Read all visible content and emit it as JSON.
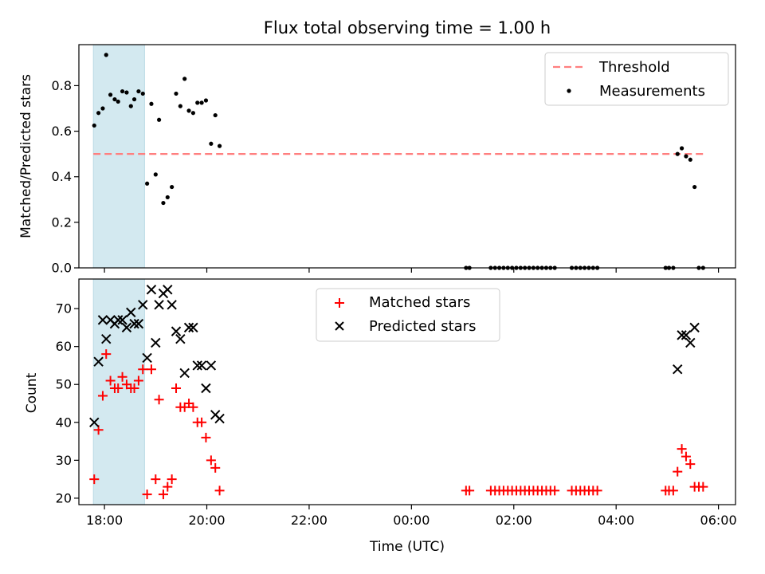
{
  "chart_data": {
    "type": "scatter",
    "title": "Flux total observing time = 1.00 h",
    "x_start": "2024-01-01T17:30",
    "x_end": "2024-01-02T06:20",
    "x_ticks": [
      {
        "time": "2024-01-01T18:00",
        "label": "18:00"
      },
      {
        "time": "2024-01-01T20:00",
        "label": "20:00"
      },
      {
        "time": "2024-01-01T22:00",
        "label": "22:00"
      },
      {
        "time": "2024-01-02T00:00",
        "label": "00:00"
      },
      {
        "time": "2024-01-02T02:00",
        "label": "02:00"
      },
      {
        "time": "2024-01-02T04:00",
        "label": "04:00"
      },
      {
        "time": "2024-01-02T06:00",
        "label": "06:00"
      }
    ],
    "xlabel": "Time (UTC)",
    "shaded_interval": [
      "2024-01-01T17:47",
      "2024-01-01T18:47"
    ],
    "shaded_color": "#d3e9f0",
    "panels": [
      {
        "id": "ratio",
        "ylabel": "Matched/Predicted stars",
        "ylim": [
          0,
          0.98
        ],
        "yticks": [
          {
            "value": 0.0,
            "label": "0.0"
          },
          {
            "value": 0.2,
            "label": "0.2"
          },
          {
            "value": 0.4,
            "label": "0.4"
          },
          {
            "value": 0.6,
            "label": "0.6"
          },
          {
            "value": 0.8,
            "label": "0.8"
          }
        ],
        "threshold": {
          "label": "Threshold",
          "value": 0.5,
          "start": "2024-01-01T17:47",
          "end": "2024-01-02T05:45",
          "color": "#ff7f7f"
        },
        "series": [
          {
            "name": "Measurements",
            "marker": "dot",
            "color": "#000000",
            "points": [
              [
                "2024-01-01T17:48",
                0.625
              ],
              [
                "2024-01-01T17:53",
                0.68
              ],
              [
                "2024-01-01T17:58",
                0.7
              ],
              [
                "2024-01-01T18:02",
                0.935
              ],
              [
                "2024-01-01T18:07",
                0.76
              ],
              [
                "2024-01-01T18:12",
                0.74
              ],
              [
                "2024-01-01T18:16",
                0.73
              ],
              [
                "2024-01-01T18:21",
                0.775
              ],
              [
                "2024-01-01T18:26",
                0.77
              ],
              [
                "2024-01-01T18:31",
                0.71
              ],
              [
                "2024-01-01T18:35",
                0.74
              ],
              [
                "2024-01-01T18:40",
                0.775
              ],
              [
                "2024-01-01T18:45",
                0.765
              ],
              [
                "2024-01-01T18:50",
                0.37
              ],
              [
                "2024-01-01T18:55",
                0.72
              ],
              [
                "2024-01-01T19:00",
                0.41
              ],
              [
                "2024-01-01T19:04",
                0.65
              ],
              [
                "2024-01-01T19:09",
                0.285
              ],
              [
                "2024-01-01T19:14",
                0.31
              ],
              [
                "2024-01-01T19:19",
                0.355
              ],
              [
                "2024-01-01T19:24",
                0.765
              ],
              [
                "2024-01-01T19:29",
                0.71
              ],
              [
                "2024-01-01T19:34",
                0.83
              ],
              [
                "2024-01-01T19:39",
                0.69
              ],
              [
                "2024-01-01T19:44",
                0.68
              ],
              [
                "2024-01-01T19:49",
                0.725
              ],
              [
                "2024-01-01T19:54",
                0.725
              ],
              [
                "2024-01-01T19:59",
                0.735
              ],
              [
                "2024-01-01T20:05",
                0.545
              ],
              [
                "2024-01-01T20:10",
                0.67
              ],
              [
                "2024-01-01T20:15",
                0.535
              ],
              [
                "2024-01-02T01:04",
                0.0
              ],
              [
                "2024-01-02T01:08",
                0.0
              ],
              [
                "2024-01-02T01:33",
                0.0
              ],
              [
                "2024-01-02T01:38",
                0.0
              ],
              [
                "2024-01-02T01:43",
                0.0
              ],
              [
                "2024-01-02T01:48",
                0.0
              ],
              [
                "2024-01-02T01:53",
                0.0
              ],
              [
                "2024-01-02T01:58",
                0.0
              ],
              [
                "2024-01-02T02:03",
                0.0
              ],
              [
                "2024-01-02T02:08",
                0.0
              ],
              [
                "2024-01-02T02:13",
                0.0
              ],
              [
                "2024-01-02T02:18",
                0.0
              ],
              [
                "2024-01-02T02:23",
                0.0
              ],
              [
                "2024-01-02T02:28",
                0.0
              ],
              [
                "2024-01-02T02:33",
                0.0
              ],
              [
                "2024-01-02T02:38",
                0.0
              ],
              [
                "2024-01-02T02:43",
                0.0
              ],
              [
                "2024-01-02T02:48",
                0.0
              ],
              [
                "2024-01-02T03:08",
                0.0
              ],
              [
                "2024-01-02T03:13",
                0.0
              ],
              [
                "2024-01-02T03:18",
                0.0
              ],
              [
                "2024-01-02T03:23",
                0.0
              ],
              [
                "2024-01-02T03:28",
                0.0
              ],
              [
                "2024-01-02T03:33",
                0.0
              ],
              [
                "2024-01-02T03:38",
                0.0
              ],
              [
                "2024-01-02T04:58",
                0.0
              ],
              [
                "2024-01-02T05:02",
                0.0
              ],
              [
                "2024-01-02T05:07",
                0.0
              ],
              [
                "2024-01-02T05:12",
                0.5
              ],
              [
                "2024-01-02T05:17",
                0.525
              ],
              [
                "2024-01-02T05:22",
                0.49
              ],
              [
                "2024-01-02T05:27",
                0.475
              ],
              [
                "2024-01-02T05:32",
                0.355
              ],
              [
                "2024-01-02T05:37",
                0.0
              ],
              [
                "2024-01-02T05:42",
                0.0
              ]
            ]
          }
        ],
        "legend": {
          "position": "top-right",
          "entries": [
            "Threshold",
            "Measurements"
          ]
        }
      },
      {
        "id": "count",
        "ylabel": "Count",
        "ylim": [
          18.3,
          77.8
        ],
        "yticks": [
          {
            "value": 20,
            "label": "20"
          },
          {
            "value": 30,
            "label": "30"
          },
          {
            "value": 40,
            "label": "40"
          },
          {
            "value": 50,
            "label": "50"
          },
          {
            "value": 60,
            "label": "60"
          },
          {
            "value": 70,
            "label": "70"
          }
        ],
        "series": [
          {
            "name": "Matched stars",
            "marker": "plus",
            "color": "#ff0000",
            "points": [
              [
                "2024-01-01T17:48",
                25
              ],
              [
                "2024-01-01T17:53",
                38
              ],
              [
                "2024-01-01T17:58",
                47
              ],
              [
                "2024-01-01T18:02",
                58
              ],
              [
                "2024-01-01T18:07",
                51
              ],
              [
                "2024-01-01T18:12",
                49
              ],
              [
                "2024-01-01T18:16",
                49
              ],
              [
                "2024-01-01T18:21",
                52
              ],
              [
                "2024-01-01T18:26",
                50
              ],
              [
                "2024-01-01T18:31",
                49
              ],
              [
                "2024-01-01T18:35",
                49
              ],
              [
                "2024-01-01T18:40",
                51
              ],
              [
                "2024-01-01T18:45",
                54
              ],
              [
                "2024-01-01T18:50",
                21
              ],
              [
                "2024-01-01T18:55",
                54
              ],
              [
                "2024-01-01T19:00",
                25
              ],
              [
                "2024-01-01T19:04",
                46
              ],
              [
                "2024-01-01T19:09",
                21
              ],
              [
                "2024-01-01T19:14",
                23
              ],
              [
                "2024-01-01T19:19",
                25
              ],
              [
                "2024-01-01T19:24",
                49
              ],
              [
                "2024-01-01T19:29",
                44
              ],
              [
                "2024-01-01T19:34",
                44
              ],
              [
                "2024-01-01T19:39",
                45
              ],
              [
                "2024-01-01T19:44",
                44
              ],
              [
                "2024-01-01T19:49",
                40
              ],
              [
                "2024-01-01T19:54",
                40
              ],
              [
                "2024-01-01T19:59",
                36
              ],
              [
                "2024-01-01T20:05",
                30
              ],
              [
                "2024-01-01T20:10",
                28
              ],
              [
                "2024-01-01T20:15",
                22
              ],
              [
                "2024-01-02T01:04",
                22
              ],
              [
                "2024-01-02T01:08",
                22
              ],
              [
                "2024-01-02T01:33",
                22
              ],
              [
                "2024-01-02T01:38",
                22
              ],
              [
                "2024-01-02T01:43",
                22
              ],
              [
                "2024-01-02T01:48",
                22
              ],
              [
                "2024-01-02T01:53",
                22
              ],
              [
                "2024-01-02T01:58",
                22
              ],
              [
                "2024-01-02T02:03",
                22
              ],
              [
                "2024-01-02T02:08",
                22
              ],
              [
                "2024-01-02T02:13",
                22
              ],
              [
                "2024-01-02T02:18",
                22
              ],
              [
                "2024-01-02T02:23",
                22
              ],
              [
                "2024-01-02T02:28",
                22
              ],
              [
                "2024-01-02T02:33",
                22
              ],
              [
                "2024-01-02T02:38",
                22
              ],
              [
                "2024-01-02T02:43",
                22
              ],
              [
                "2024-01-02T02:48",
                22
              ],
              [
                "2024-01-02T03:08",
                22
              ],
              [
                "2024-01-02T03:13",
                22
              ],
              [
                "2024-01-02T03:18",
                22
              ],
              [
                "2024-01-02T03:23",
                22
              ],
              [
                "2024-01-02T03:28",
                22
              ],
              [
                "2024-01-02T03:33",
                22
              ],
              [
                "2024-01-02T03:38",
                22
              ],
              [
                "2024-01-02T04:58",
                22
              ],
              [
                "2024-01-02T05:02",
                22
              ],
              [
                "2024-01-02T05:07",
                22
              ],
              [
                "2024-01-02T05:12",
                27
              ],
              [
                "2024-01-02T05:17",
                33
              ],
              [
                "2024-01-02T05:22",
                31
              ],
              [
                "2024-01-02T05:27",
                29
              ],
              [
                "2024-01-02T05:32",
                23
              ],
              [
                "2024-01-02T05:37",
                23
              ],
              [
                "2024-01-02T05:42",
                23
              ]
            ]
          },
          {
            "name": "Predicted stars",
            "marker": "x",
            "color": "#000000",
            "points": [
              [
                "2024-01-01T17:48",
                40
              ],
              [
                "2024-01-01T17:53",
                56
              ],
              [
                "2024-01-01T17:58",
                67
              ],
              [
                "2024-01-01T18:02",
                62
              ],
              [
                "2024-01-01T18:07",
                67
              ],
              [
                "2024-01-01T18:12",
                66
              ],
              [
                "2024-01-01T18:16",
                67
              ],
              [
                "2024-01-01T18:21",
                67
              ],
              [
                "2024-01-01T18:26",
                65
              ],
              [
                "2024-01-01T18:31",
                69
              ],
              [
                "2024-01-01T18:35",
                66
              ],
              [
                "2024-01-01T18:40",
                66
              ],
              [
                "2024-01-01T18:45",
                71
              ],
              [
                "2024-01-01T18:50",
                57
              ],
              [
                "2024-01-01T18:55",
                75
              ],
              [
                "2024-01-01T19:00",
                61
              ],
              [
                "2024-01-01T19:04",
                71
              ],
              [
                "2024-01-01T19:09",
                74
              ],
              [
                "2024-01-01T19:14",
                75
              ],
              [
                "2024-01-01T19:19",
                71
              ],
              [
                "2024-01-01T19:24",
                64
              ],
              [
                "2024-01-01T19:29",
                62
              ],
              [
                "2024-01-01T19:34",
                53
              ],
              [
                "2024-01-01T19:39",
                65
              ],
              [
                "2024-01-01T19:44",
                65
              ],
              [
                "2024-01-01T19:49",
                55
              ],
              [
                "2024-01-01T19:54",
                55
              ],
              [
                "2024-01-01T19:59",
                49
              ],
              [
                "2024-01-01T20:05",
                55
              ],
              [
                "2024-01-01T20:10",
                42
              ],
              [
                "2024-01-01T20:15",
                41
              ],
              [
                "2024-01-02T05:12",
                54
              ],
              [
                "2024-01-02T05:17",
                63
              ],
              [
                "2024-01-02T05:22",
                63
              ],
              [
                "2024-01-02T05:27",
                61
              ],
              [
                "2024-01-02T05:32",
                65
              ]
            ]
          }
        ],
        "legend": {
          "position": "upper center",
          "entries": [
            "Matched stars",
            "Predicted stars"
          ]
        }
      }
    ]
  }
}
